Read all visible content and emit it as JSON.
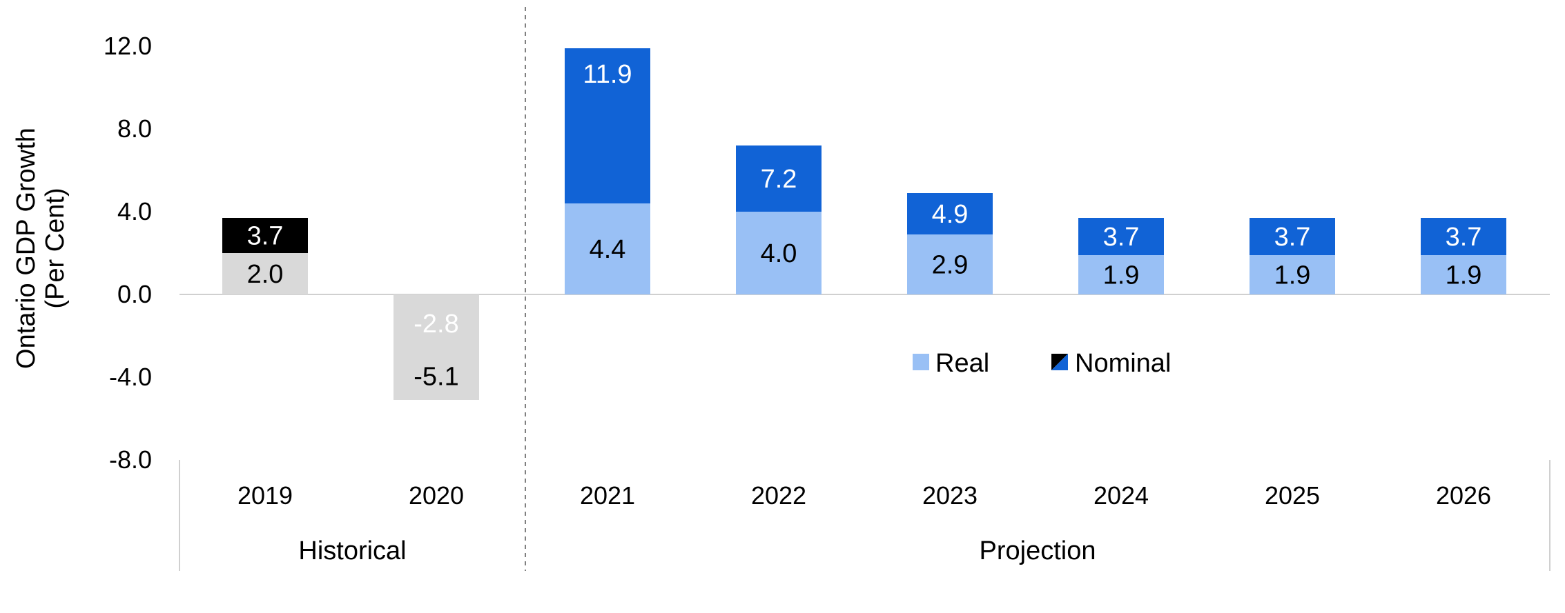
{
  "chart_data": {
    "type": "bar",
    "stacked_overlap": true,
    "ylabel": [
      "Ontario GDP Growth",
      "(Per Cent)"
    ],
    "ylim": [
      -8.0,
      12.0
    ],
    "yticks": [
      "12.0",
      "8.0",
      "4.0",
      "0.0",
      "-4.0",
      "-8.0"
    ],
    "categories": [
      "2019",
      "2020",
      "2021",
      "2022",
      "2023",
      "2024",
      "2025",
      "2026"
    ],
    "groups": [
      {
        "label": "Historical",
        "categories": [
          "2019",
          "2020"
        ]
      },
      {
        "label": "Projection",
        "categories": [
          "2021",
          "2022",
          "2023",
          "2024",
          "2025",
          "2026"
        ]
      }
    ],
    "series": [
      {
        "name": "Real",
        "values": [
          2.0,
          -5.1,
          4.4,
          4.0,
          2.9,
          1.9,
          1.9,
          1.9
        ],
        "labels": [
          "2.0",
          "-5.1",
          "4.4",
          "4.0",
          "2.9",
          "1.9",
          "1.9",
          "1.9"
        ]
      },
      {
        "name": "Nominal",
        "values": [
          3.7,
          -2.8,
          11.9,
          7.2,
          4.9,
          3.7,
          3.7,
          3.7
        ],
        "labels": [
          "3.7",
          "-2.8",
          "11.9",
          "7.2",
          "4.9",
          "3.7",
          "3.7",
          "3.7"
        ]
      }
    ],
    "colors": {
      "historical_real": "#d9d9d9",
      "historical_nominal": "#000000",
      "projection_real": "#99c0f5",
      "projection_nominal": "#1163d6",
      "axis": "#d0d0d0",
      "divider": "#808080"
    },
    "legend": {
      "position": "center-right",
      "entries": [
        "Real",
        "Nominal"
      ]
    },
    "grid": false
  }
}
